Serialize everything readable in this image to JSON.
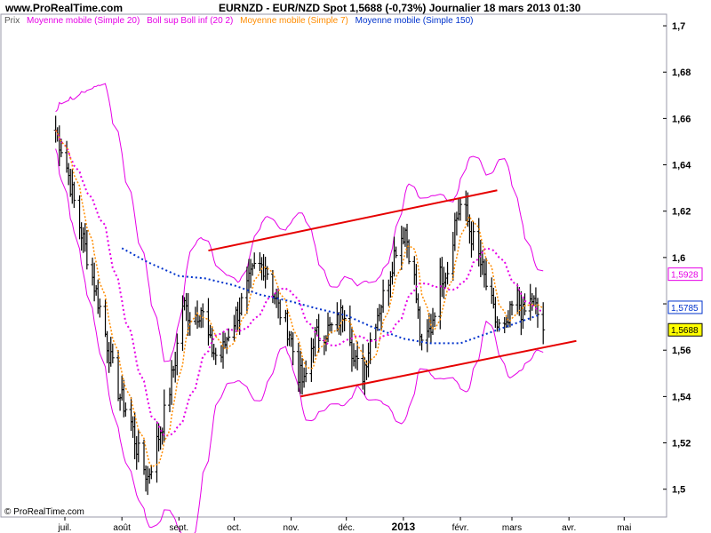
{
  "header": {
    "site": "www.ProRealTime.com",
    "title": "EURNZD - EUR/NZD Spot    1,5688 (-0,73%)    Journalier  18 mars 2013 01:30"
  },
  "legend": [
    {
      "label": "Prix",
      "color": "#555555"
    },
    {
      "label": "Moyenne mobile (Simple 20)",
      "color": "#e600e6"
    },
    {
      "label": "Boll sup Boll inf (20 2)",
      "color": "#e600e6"
    },
    {
      "label": "Moyenne mobile (Simple 7)",
      "color": "#ff8c00"
    },
    {
      "label": "Moyenne mobile (Simple 150)",
      "color": "#0033cc"
    }
  ],
  "footer": {
    "copyright": "© ProRealTime.com"
  },
  "chart_data": {
    "type": "ohlc",
    "instrument": "EURNZD - EUR/NZD Spot",
    "timeframe": "Journalier",
    "ylim": [
      1.488,
      1.705
    ],
    "y_ticks": [
      "1,7",
      "1,68",
      "1,66",
      "1,64",
      "1,62",
      "1,6",
      "1,58",
      "1,56",
      "1,54",
      "1,52",
      "1,5"
    ],
    "y_tick_values": [
      1.7,
      1.68,
      1.66,
      1.64,
      1.62,
      1.6,
      1.58,
      1.56,
      1.54,
      1.52,
      1.5
    ],
    "x_ticks": [
      {
        "label": "juil.",
        "day": 0
      },
      {
        "label": "août",
        "day": 31
      },
      {
        "label": "sept.",
        "day": 62
      },
      {
        "label": "oct.",
        "day": 92
      },
      {
        "label": "nov.",
        "day": 123
      },
      {
        "label": "déc.",
        "day": 153
      },
      {
        "label": "2013",
        "day": 184,
        "bold": true
      },
      {
        "label": "févr.",
        "day": 215
      },
      {
        "label": "mars",
        "day": 243
      },
      {
        "label": "avr.",
        "day": 274
      },
      {
        "label": "mai",
        "day": 304
      }
    ],
    "price_path": [
      [
        "2012-06-26",
        1.655
      ],
      [
        "2012-07-01",
        1.643
      ],
      [
        "2012-07-07",
        1.62
      ],
      [
        "2012-07-14",
        1.598
      ],
      [
        "2012-07-21",
        1.575
      ],
      [
        "2012-07-26",
        1.555
      ],
      [
        "2012-07-31",
        1.54
      ],
      [
        "2012-08-05",
        1.532
      ],
      [
        "2012-08-10",
        1.515
      ],
      [
        "2012-08-15",
        1.505
      ],
      [
        "2012-08-20",
        1.52
      ],
      [
        "2012-08-25",
        1.535
      ],
      [
        "2012-08-30",
        1.556
      ],
      [
        "2012-09-03",
        1.58
      ],
      [
        "2012-09-08",
        1.574
      ],
      [
        "2012-09-13",
        1.578
      ],
      [
        "2012-09-18",
        1.562
      ],
      [
        "2012-09-23",
        1.555
      ],
      [
        "2012-09-28",
        1.568
      ],
      [
        "2012-10-05",
        1.58
      ],
      [
        "2012-10-12",
        1.595
      ],
      [
        "2012-10-18",
        1.597
      ],
      [
        "2012-10-25",
        1.578
      ],
      [
        "2012-10-31",
        1.568
      ],
      [
        "2012-11-04",
        1.552
      ],
      [
        "2012-11-08",
        1.545
      ],
      [
        "2012-11-13",
        1.565
      ],
      [
        "2012-11-19",
        1.568
      ],
      [
        "2012-11-25",
        1.57
      ],
      [
        "2012-12-01",
        1.58
      ],
      [
        "2012-12-05",
        1.555
      ],
      [
        "2012-12-10",
        1.55
      ],
      [
        "2012-12-16",
        1.572
      ],
      [
        "2012-12-22",
        1.585
      ],
      [
        "2012-12-28",
        1.605
      ],
      [
        "2013-01-02",
        1.612
      ],
      [
        "2013-01-07",
        1.59
      ],
      [
        "2013-01-11",
        1.56
      ],
      [
        "2013-01-16",
        1.57
      ],
      [
        "2013-01-21",
        1.592
      ],
      [
        "2013-01-25",
        1.595
      ],
      [
        "2013-01-29",
        1.615
      ],
      [
        "2013-02-02",
        1.625
      ],
      [
        "2013-02-06",
        1.612
      ],
      [
        "2013-02-11",
        1.6
      ],
      [
        "2013-02-16",
        1.585
      ],
      [
        "2013-02-21",
        1.57
      ],
      [
        "2013-02-26",
        1.568
      ],
      [
        "2013-03-03",
        1.585
      ],
      [
        "2013-03-07",
        1.575
      ],
      [
        "2013-03-12",
        1.582
      ],
      [
        "2013-03-18",
        1.5688
      ]
    ],
    "overlays": {
      "sma7_color": "#ff8c00",
      "sma20_color": "#e600e6",
      "bollinger_color": "#e600e6",
      "sma150_color": "#0033cc",
      "bollinger_note": "Boll sup Boll inf (20 2)"
    },
    "sma150_path": [
      [
        "2012-08-01",
        1.604
      ],
      [
        "2012-08-15",
        1.598
      ],
      [
        "2012-09-01",
        1.592
      ],
      [
        "2012-09-15",
        1.591
      ],
      [
        "2012-10-01",
        1.588
      ],
      [
        "2012-10-15",
        1.584
      ],
      [
        "2012-11-01",
        1.581
      ],
      [
        "2012-11-15",
        1.578
      ],
      [
        "2012-12-01",
        1.575
      ],
      [
        "2012-12-15",
        1.57
      ],
      [
        "2013-01-01",
        1.565
      ],
      [
        "2013-01-15",
        1.563
      ],
      [
        "2013-02-01",
        1.563
      ],
      [
        "2013-02-15",
        1.567
      ],
      [
        "2013-03-01",
        1.571
      ],
      [
        "2013-03-15",
        1.575
      ]
    ],
    "trendlines": [
      {
        "label": "channel-upper",
        "color": "#e60000",
        "from": [
          "2012-09-17",
          1.603
        ],
        "to": [
          "2013-02-21",
          1.629
        ]
      },
      {
        "label": "channel-lower",
        "color": "#e60000",
        "from": [
          "2012-11-06",
          1.54
        ],
        "to": [
          "2013-04-05",
          1.564
        ]
      }
    ],
    "price_labels": [
      {
        "value": "1,5928",
        "color": "#e600e6",
        "bg": "#ffffff"
      },
      {
        "value": "1,5785",
        "color": "#0033cc",
        "bg": "#ffffff"
      },
      {
        "value": "1,5688",
        "color": "#000000",
        "bg": "#ffff00"
      }
    ]
  }
}
